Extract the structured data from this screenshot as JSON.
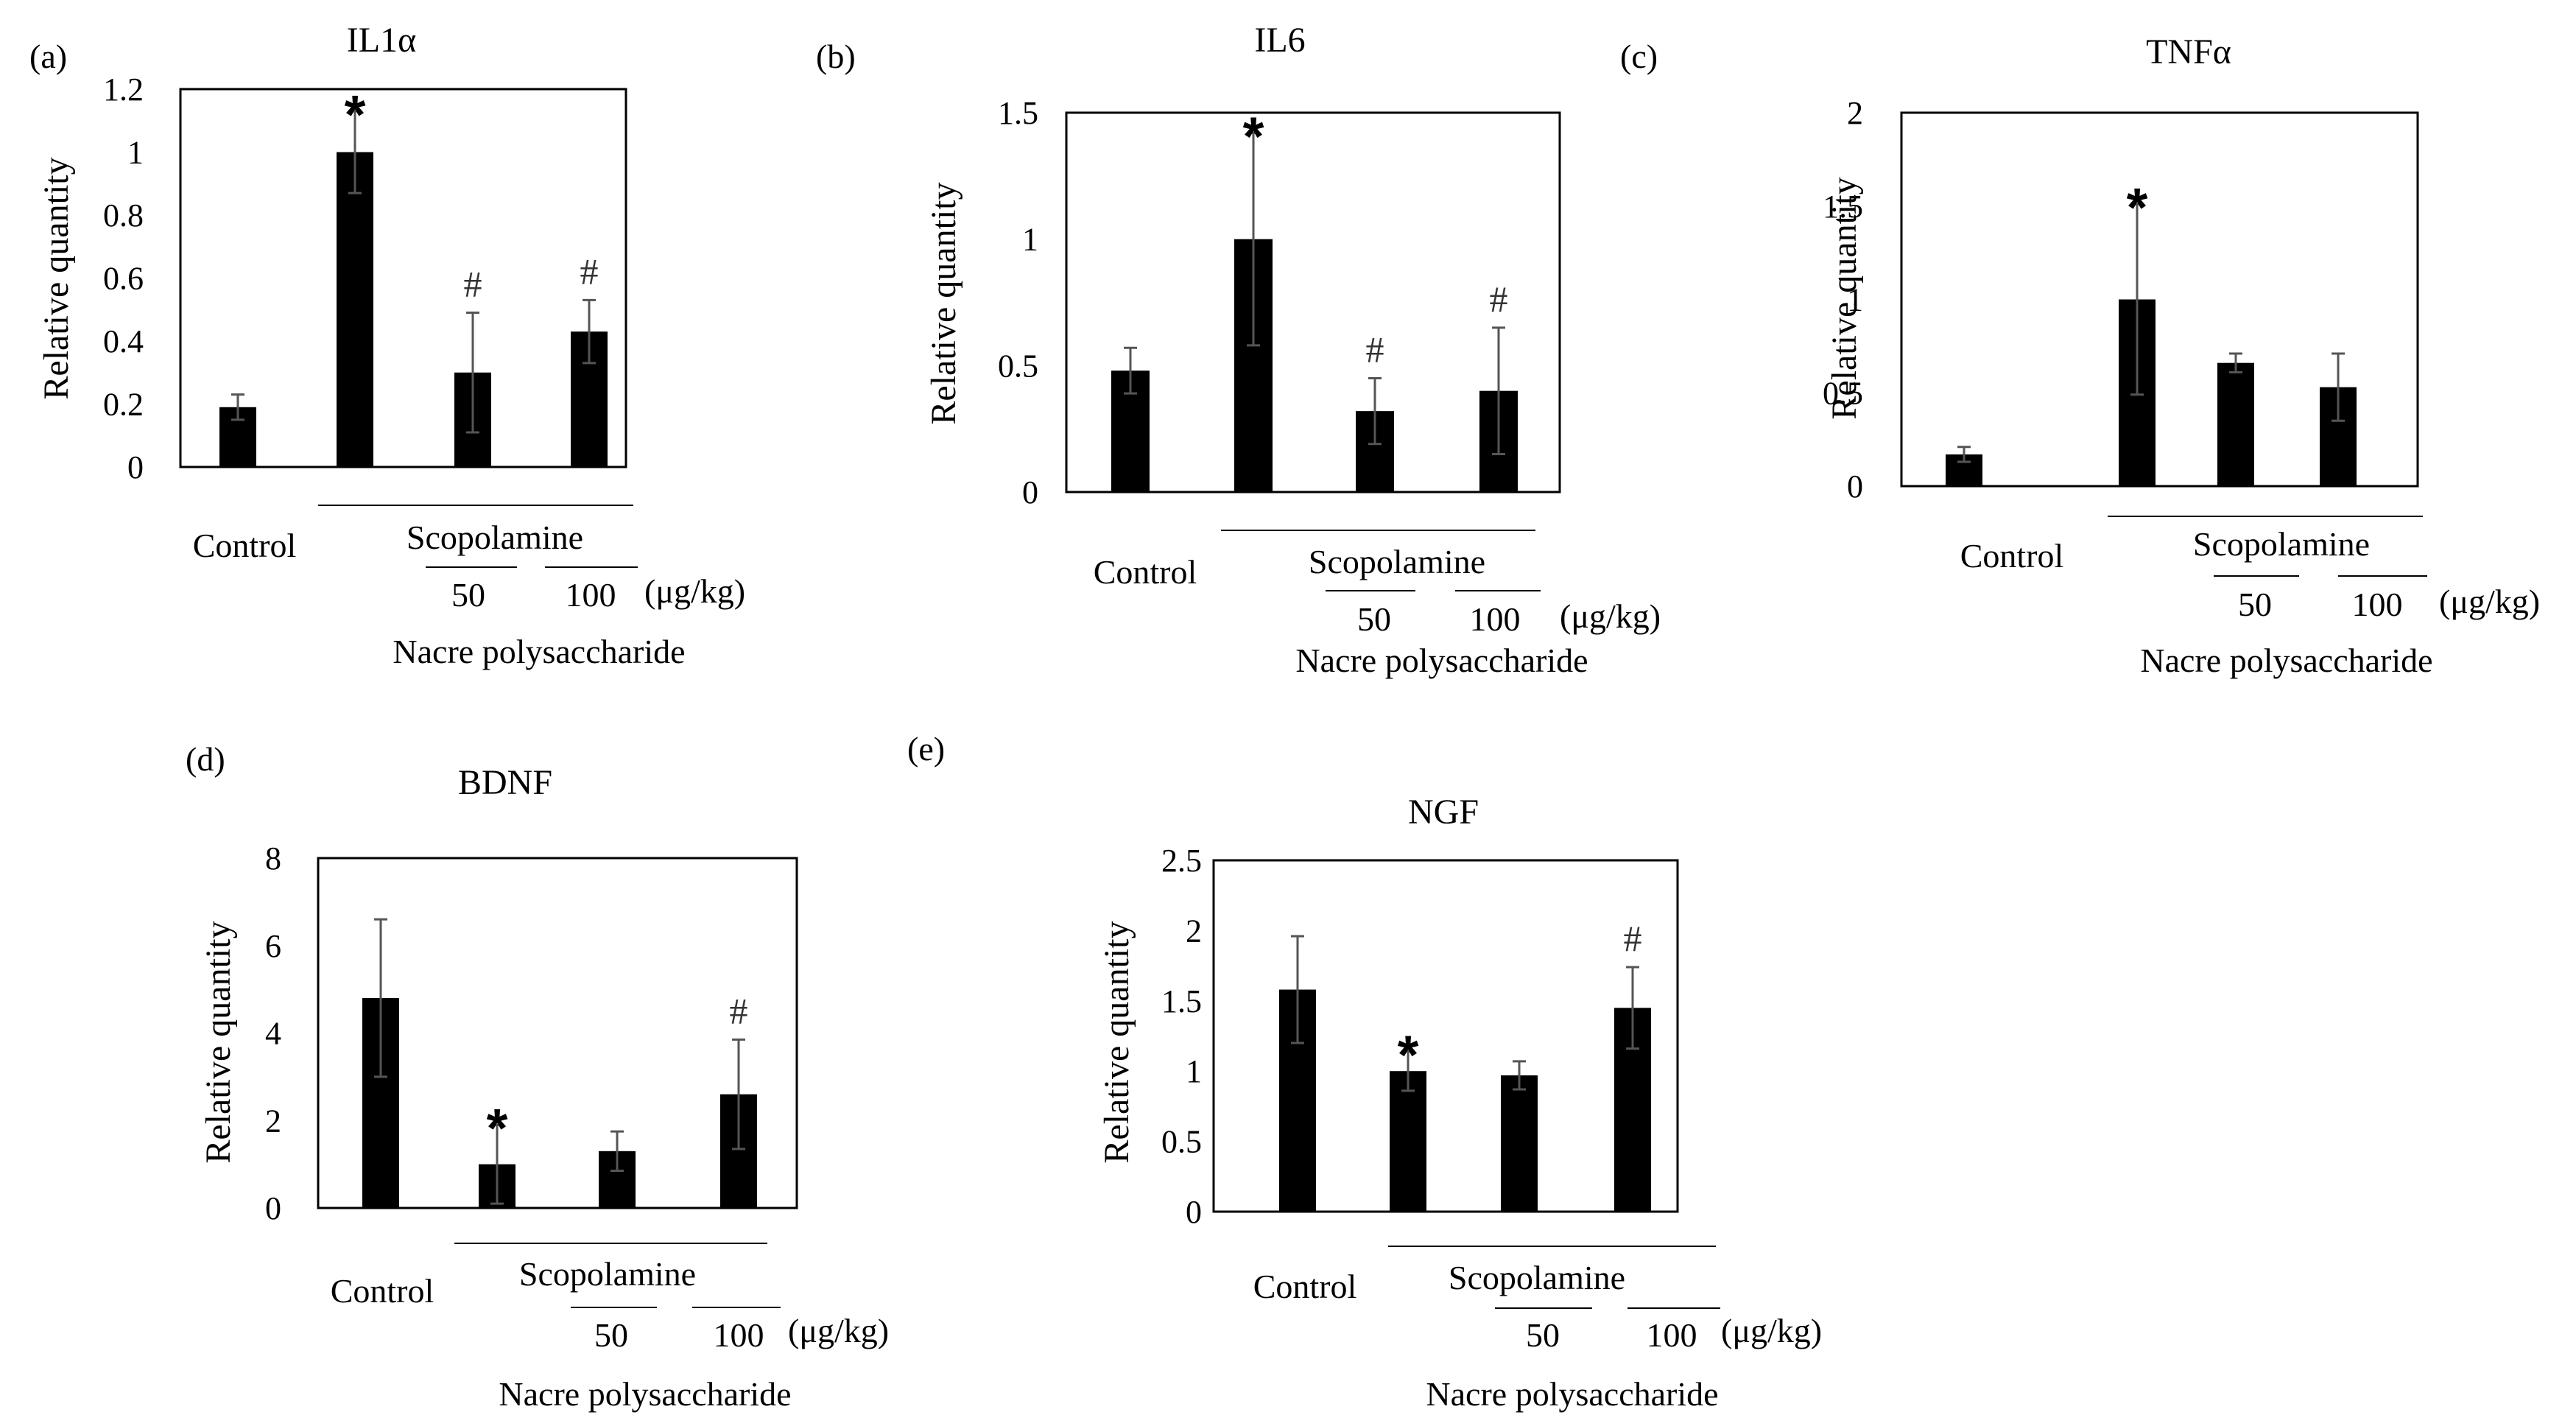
{
  "colors": {
    "bar": "#000000",
    "error_bar": "#555555",
    "axis": "#000000",
    "hash_mark": "#333333"
  },
  "chart_data": [
    {
      "panel": "(a)",
      "type": "bar",
      "title": "IL1α",
      "ylabel": "Relative quantity",
      "ylim": [
        0,
        1.2
      ],
      "yticks": [
        "0",
        "0.2",
        "0.4",
        "0.6",
        "0.8",
        "1",
        "1.2"
      ],
      "ytick_values": [
        0,
        0.2,
        0.4,
        0.6,
        0.8,
        1,
        1.2
      ],
      "categories": [
        "Control",
        "Scopolamine",
        "50",
        "100"
      ],
      "values": [
        0.19,
        1.0,
        0.3,
        0.43
      ],
      "errors": [
        0.04,
        0.13,
        0.19,
        0.1
      ],
      "marks": [
        "",
        "*",
        "#",
        "#"
      ],
      "labels": {
        "control": "Control",
        "scopolamine": "Scopolamine",
        "dose_50": "50",
        "dose_100": "100",
        "unit": "(μg/kg)",
        "treatment": "Nacre polysaccharide"
      }
    },
    {
      "panel": "(b)",
      "type": "bar",
      "title": "IL6",
      "ylabel": "Relative quantity",
      "ylim": [
        0,
        1.5
      ],
      "yticks": [
        "0",
        "0.5",
        "1",
        "1.5"
      ],
      "ytick_values": [
        0,
        0.5,
        1,
        1.5
      ],
      "categories": [
        "Control",
        "Scopolamine",
        "50",
        "100"
      ],
      "values": [
        0.48,
        1.0,
        0.32,
        0.4
      ],
      "errors": [
        0.09,
        0.42,
        0.13,
        0.25
      ],
      "marks": [
        "",
        "*",
        "#",
        "#"
      ],
      "labels": {
        "control": "Control",
        "scopolamine": "Scopolamine",
        "dose_50": "50",
        "dose_100": "100",
        "unit": "(μg/kg)",
        "treatment": "Nacre polysaccharide"
      }
    },
    {
      "panel": "(c)",
      "type": "bar",
      "title": "TNFα",
      "ylabel": "Relative quantity",
      "ylim": [
        0,
        2
      ],
      "yticks": [
        "0",
        "0.5",
        "1",
        "1.5",
        "2"
      ],
      "ytick_values": [
        0,
        0.5,
        1,
        1.5,
        2
      ],
      "categories": [
        "Control",
        "Scopolamine",
        "50",
        "100"
      ],
      "values": [
        0.17,
        1.0,
        0.66,
        0.53
      ],
      "errors": [
        0.04,
        0.51,
        0.05,
        0.18
      ],
      "marks": [
        "",
        "*",
        "",
        ""
      ],
      "labels": {
        "control": "Control",
        "scopolamine": "Scopolamine",
        "dose_50": "50",
        "dose_100": "100",
        "unit": "(μg/kg)",
        "treatment": "Nacre polysaccharide"
      }
    },
    {
      "panel": "(d)",
      "type": "bar",
      "title": "BDNF",
      "ylabel": "Relative quantity",
      "ylim": [
        0,
        8
      ],
      "yticks": [
        "0",
        "2",
        "4",
        "6",
        "8"
      ],
      "ytick_values": [
        0,
        2,
        4,
        6,
        8
      ],
      "categories": [
        "Control",
        "Scopolamine",
        "50",
        "100"
      ],
      "values": [
        4.8,
        1.0,
        1.3,
        2.6
      ],
      "errors": [
        1.8,
        0.9,
        0.45,
        1.25
      ],
      "marks": [
        "",
        "*",
        "",
        "#"
      ],
      "labels": {
        "control": "Control",
        "scopolamine": "Scopolamine",
        "dose_50": "50",
        "dose_100": "100",
        "unit": "(μg/kg)",
        "treatment": "Nacre polysaccharide"
      }
    },
    {
      "panel": "(e)",
      "type": "bar",
      "title": "NGF",
      "ylabel": "Relative quantity",
      "ylim": [
        0,
        2.5
      ],
      "yticks": [
        "0",
        "0.5",
        "1",
        "1.5",
        "2",
        "2.5"
      ],
      "ytick_values": [
        0,
        0.5,
        1,
        1.5,
        2,
        2.5
      ],
      "categories": [
        "Control",
        "Scopolamine",
        "50",
        "100"
      ],
      "values": [
        1.58,
        1.0,
        0.97,
        1.45
      ],
      "errors": [
        0.38,
        0.14,
        0.1,
        0.29
      ],
      "marks": [
        "",
        "*",
        "",
        "#"
      ],
      "labels": {
        "control": "Control",
        "scopolamine": "Scopolamine",
        "dose_50": "50",
        "dose_100": "100",
        "unit": "(μg/kg)",
        "treatment": "Nacre polysaccharide"
      }
    }
  ]
}
